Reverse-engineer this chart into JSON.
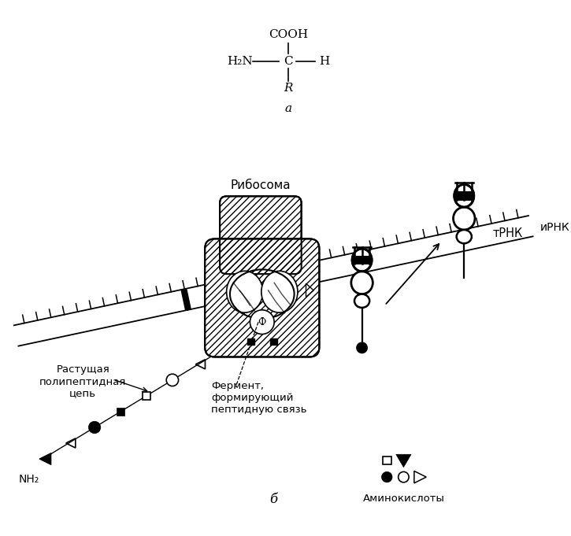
{
  "bg_color": "#ffffff",
  "text_color": "#000000",
  "label_ribosome": "Рибосома",
  "label_mRNA": "иРНК",
  "label_tRNA": "тРНК",
  "label_growing_chain": "Растущая\nполипептидная\nцепь",
  "label_enzyme": "Фермент,\nформирующий\nпептидную связь",
  "label_nh2": "NH₂",
  "label_aminoacids": "Аминокислоты",
  "label_a": "а",
  "label_b": "б",
  "cooh": "COOH",
  "h2n": "H₂N",
  "c_text": "C",
  "h_text": "H",
  "r_text": "R"
}
